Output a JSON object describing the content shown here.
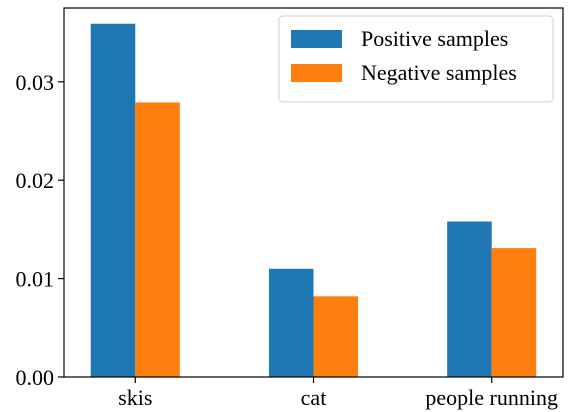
{
  "chart_data": {
    "type": "bar",
    "categories": [
      "skis",
      "cat",
      "people running"
    ],
    "series": [
      {
        "name": "Positive samples",
        "color": "#1f77b4",
        "values": [
          0.0359,
          0.011,
          0.0158
        ]
      },
      {
        "name": "Negative samples",
        "color": "#ff7f0e",
        "values": [
          0.0279,
          0.0082,
          0.0131
        ]
      }
    ],
    "ylim": [
      0,
      0.0375
    ],
    "yticks": [
      0.0,
      0.01,
      0.02,
      0.03
    ],
    "ytick_labels": [
      "0.00",
      "0.01",
      "0.02",
      "0.03"
    ],
    "xlabel": "",
    "ylabel": "",
    "title": "",
    "legend_position": "top-right",
    "grid": false
  }
}
